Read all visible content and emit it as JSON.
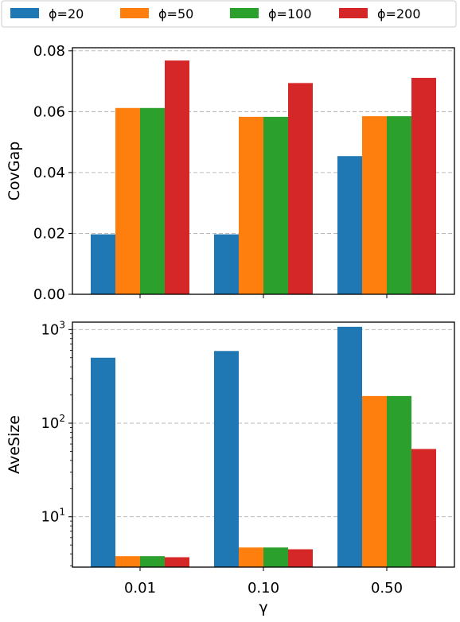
{
  "colors": {
    "series": [
      "#1f77b4",
      "#ff7f0e",
      "#2ca02c",
      "#d62728"
    ],
    "grid": "#b0b0b0",
    "axis": "#000000"
  },
  "legend": {
    "placement": "top-center",
    "entries": [
      "ϕ=20",
      "ϕ=50",
      "ϕ=100",
      "ϕ=200"
    ]
  },
  "chart_data": [
    {
      "type": "bar",
      "categories": [
        "0.01",
        "0.10",
        "0.50"
      ],
      "series": [
        {
          "name": "ϕ=20",
          "values": [
            0.0197,
            0.0197,
            0.0454
          ]
        },
        {
          "name": "ϕ=50",
          "values": [
            0.0612,
            0.0583,
            0.0585
          ]
        },
        {
          "name": "ϕ=100",
          "values": [
            0.0612,
            0.0583,
            0.0585
          ]
        },
        {
          "name": "ϕ=200",
          "values": [
            0.0768,
            0.0694,
            0.0711
          ]
        }
      ],
      "ylabel": "CovGap",
      "ylim": [
        0,
        0.081
      ],
      "yticks": [
        0.0,
        0.02,
        0.04,
        0.06,
        0.08
      ],
      "ytick_labels": [
        "0.00",
        "0.02",
        "0.04",
        "0.06",
        "0.08"
      ],
      "yscale": "linear",
      "grid": "horizontal-dashed",
      "xtick_labels_visible": false
    },
    {
      "type": "bar",
      "categories": [
        "0.01",
        "0.10",
        "0.50"
      ],
      "series": [
        {
          "name": "ϕ=20",
          "values": [
            500,
            590,
            1070
          ]
        },
        {
          "name": "ϕ=50",
          "values": [
            3.8,
            4.7,
            195
          ]
        },
        {
          "name": "ϕ=100",
          "values": [
            3.8,
            4.7,
            195
          ]
        },
        {
          "name": "ϕ=200",
          "values": [
            3.7,
            4.5,
            53
          ]
        }
      ],
      "xlabel": "γ",
      "ylabel": "AveSize",
      "ylim": [
        2.9,
        1200
      ],
      "yscale": "log",
      "yticks": [
        10,
        100,
        1000
      ],
      "ytick_labels": [
        {
          "base": "10",
          "exp": "1"
        },
        {
          "base": "10",
          "exp": "2"
        },
        {
          "base": "10",
          "exp": "3"
        }
      ],
      "grid": "horizontal-dashed"
    }
  ]
}
